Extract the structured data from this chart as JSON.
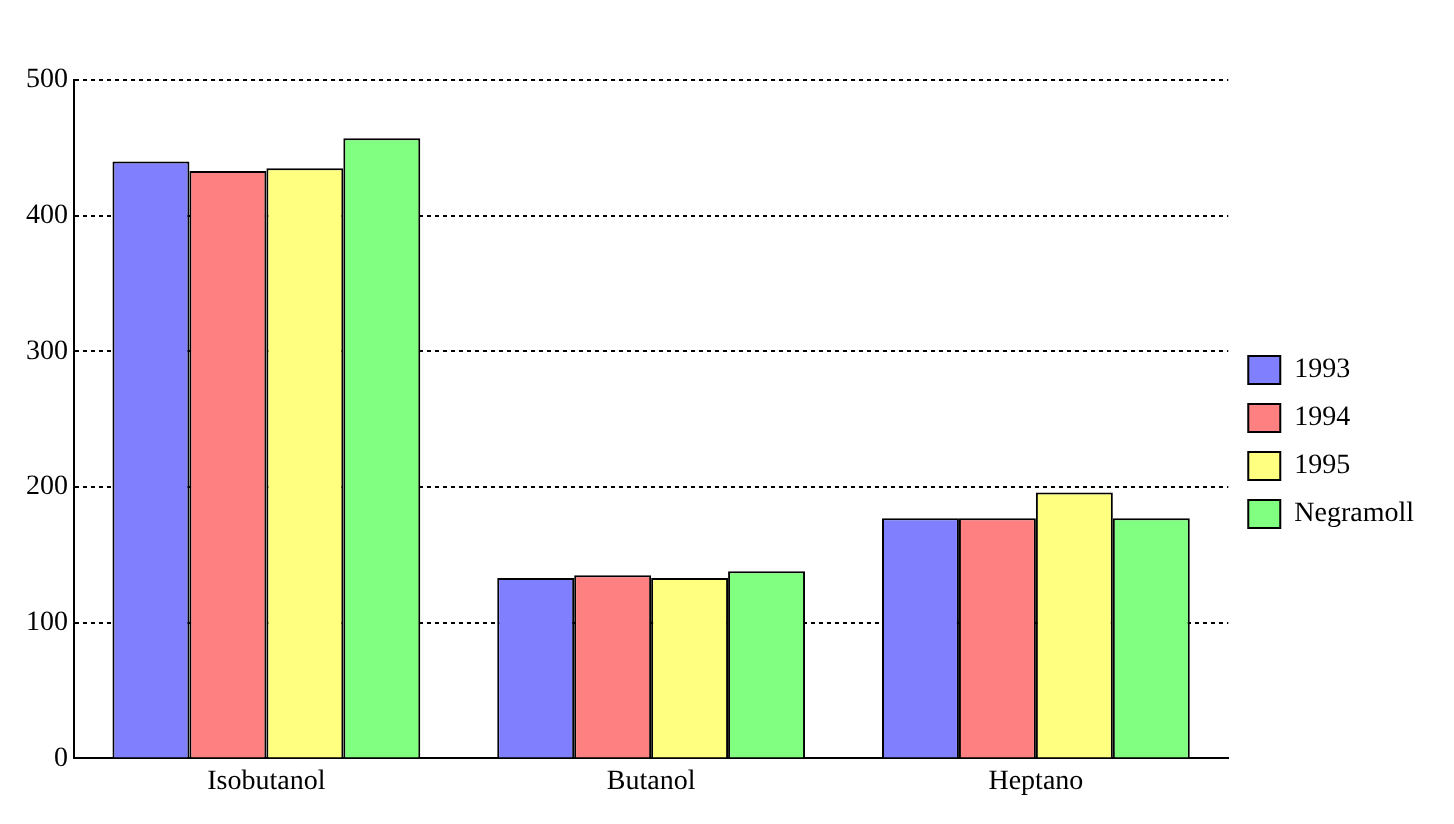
{
  "chart_data": {
    "type": "bar",
    "categories": [
      "Isobutanol",
      "Butanol",
      "Heptano"
    ],
    "series": [
      {
        "name": "1993",
        "color": "#8080ff",
        "values": [
          440,
          133,
          177
        ]
      },
      {
        "name": "1994",
        "color": "#ff8080",
        "values": [
          433,
          135,
          177
        ]
      },
      {
        "name": "1995",
        "color": "#ffff80",
        "values": [
          435,
          133,
          196
        ]
      },
      {
        "name": "Negramoll",
        "color": "#80ff80",
        "values": [
          457,
          138,
          177
        ]
      }
    ],
    "ylim": [
      0,
      500
    ],
    "yticks": [
      0,
      100,
      200,
      300,
      400,
      500
    ],
    "grid": "y",
    "legend": "right"
  }
}
